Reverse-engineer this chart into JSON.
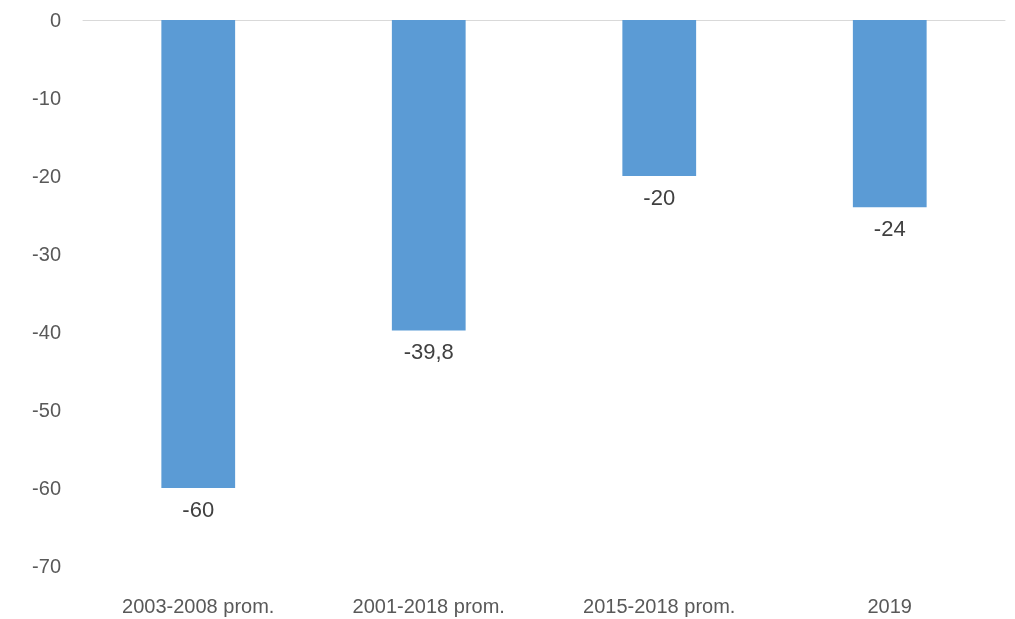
{
  "chart_data": {
    "type": "bar",
    "categories": [
      "2003-2008 prom.",
      "2001-2018 prom.",
      "2015-2018 prom.",
      "2019"
    ],
    "values": [
      -60,
      -39.8,
      -20,
      -24
    ],
    "value_labels": [
      "-60",
      "-39,8",
      "-20",
      "-24"
    ],
    "color": "#5b9bd5",
    "ylim": [
      -70,
      0
    ],
    "yticks": [
      0,
      -10,
      -20,
      -30,
      -40,
      -50,
      -60,
      -70
    ],
    "grid": false
  }
}
